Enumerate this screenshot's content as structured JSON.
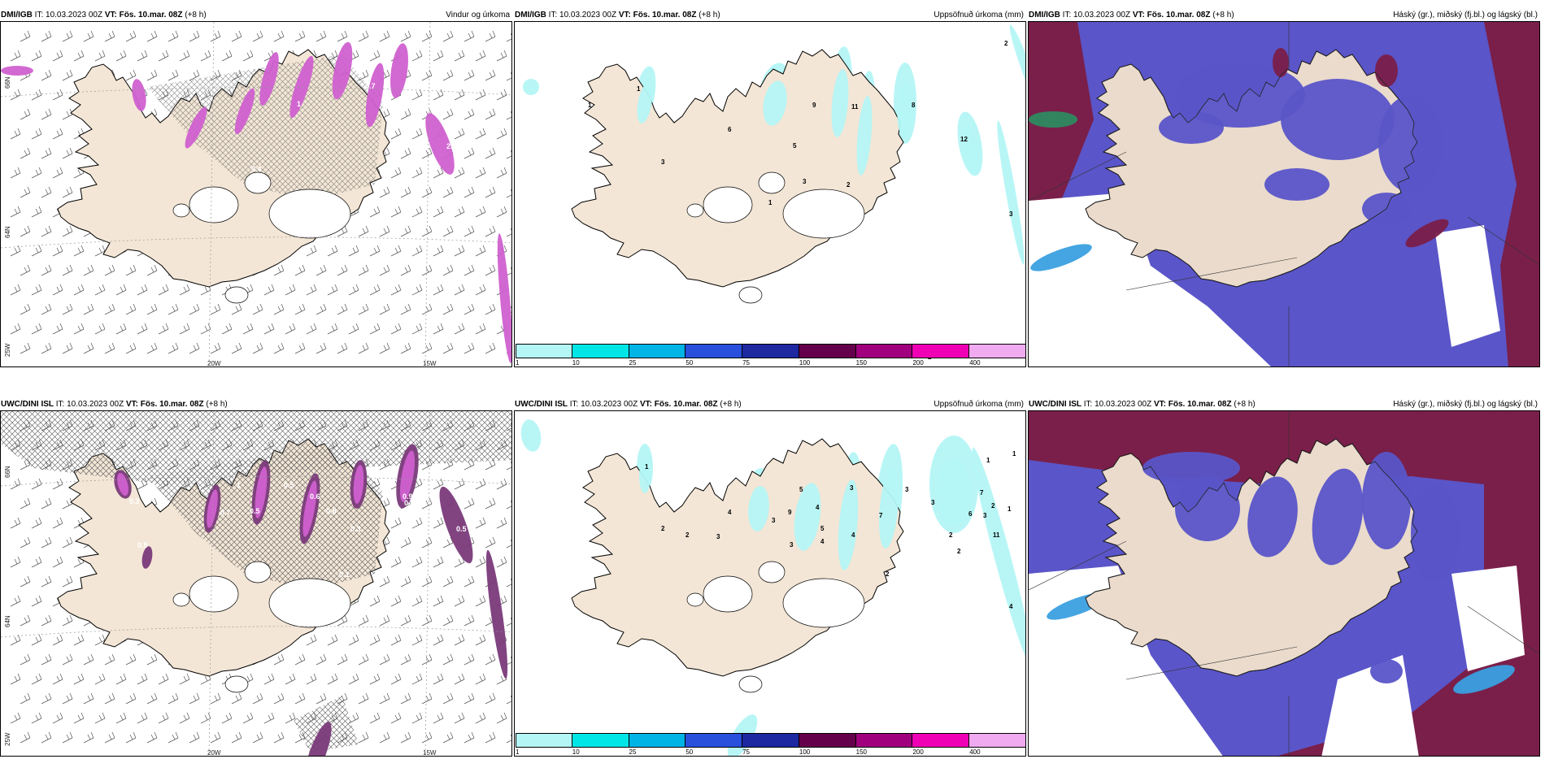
{
  "panels": [
    {
      "model": "DMI/IGB",
      "it": "IT: 10.03.2023 00Z",
      "vt": "VT: Fös. 10.mar. 08Z",
      "lead": "(+8 h)",
      "title": "Vindur og úrkoma",
      "kind": "wind"
    },
    {
      "model": "DMI/IGB",
      "it": "IT: 10.03.2023 00Z",
      "vt": "VT: Fös. 10.mar. 08Z",
      "lead": "(+8 h)",
      "title": "Uppsöfnuð úrkoma (mm)",
      "kind": "precip"
    },
    {
      "model": "DMI/IGB",
      "it": "IT: 10.03.2023 00Z",
      "vt": "VT: Fös. 10.mar. 08Z",
      "lead": "(+8 h)",
      "title": "Háský (gr.), miðský (fj.bl.) og lágský (bl.)",
      "kind": "cloud"
    },
    {
      "model": "UWC/DINI ISL",
      "it": "IT: 10.03.2023 00Z",
      "vt": "VT: Fös. 10.mar. 08Z",
      "lead": "(+8 h)",
      "title": "",
      "kind": "wind"
    },
    {
      "model": "UWC/DINI ISL",
      "it": "IT: 10.03.2023 00Z",
      "vt": "VT: Fös. 10.mar. 08Z",
      "lead": "(+8 h)",
      "title": "Uppsöfnuð úrkoma (mm)",
      "kind": "precip"
    },
    {
      "model": "UWC/DINI ISL",
      "it": "IT: 10.03.2023 00Z",
      "vt": "VT: Fös. 10.mar. 08Z",
      "lead": "(+8 h)",
      "title": "Háský (gr.), miðský (fj.bl.) og lágský (bl.)",
      "kind": "cloud"
    }
  ],
  "axis_labels": {
    "lon_20w": "20W",
    "lon_15w": "15W",
    "lat_66n": "66N",
    "lat_64n": "64N",
    "lon_25w": "25W"
  },
  "colorbar": {
    "labels": [
      "1",
      "10",
      "25",
      "50",
      "75",
      "100",
      "150",
      "200",
      "400"
    ],
    "colors": [
      "#b4f5f5",
      "#00e6e6",
      "#00b4e6",
      "#2850dc",
      "#1e28a0",
      "#64004b",
      "#a0007d",
      "#f000b4",
      "#f0aaf0"
    ]
  },
  "precip_values_top": [
    "2",
    "1",
    "1",
    "3",
    "6",
    "5",
    "9",
    "11",
    "8",
    "12",
    "2",
    "1",
    "3",
    "3",
    "2"
  ],
  "precip_values_bottom": [
    "1",
    "2",
    "4",
    "3",
    "2",
    "5",
    "3",
    "9",
    "3",
    "4",
    "5",
    "4",
    "3",
    "4",
    "3",
    "7",
    "2",
    "3",
    "7",
    "2",
    "6",
    "11",
    "3",
    "2",
    "2",
    "1",
    "1",
    "1",
    "4",
    "1",
    "1"
  ],
  "wind_values_top": [
    "0.7",
    "1",
    "1",
    "2.8",
    "0.4"
  ],
  "wind_values_bottom": [
    "0.3",
    "0.5",
    "1",
    "0.5",
    "0.6",
    "0.8",
    "0.9",
    "0.3",
    "0.5",
    "0.7",
    "0.1",
    "0.4",
    "0.5"
  ],
  "colors": {
    "land": "#f3e6d6",
    "land_cloud": "#eadbcc",
    "ice": "#ffffff",
    "high_cloud": "#5a55c8",
    "mid_cloud": "#7a1f4a",
    "low_cloud": "#3aa0e0",
    "precip_light": "#b4f5f5",
    "magenta": "#d060d0",
    "purple": "#7a3a7a"
  }
}
